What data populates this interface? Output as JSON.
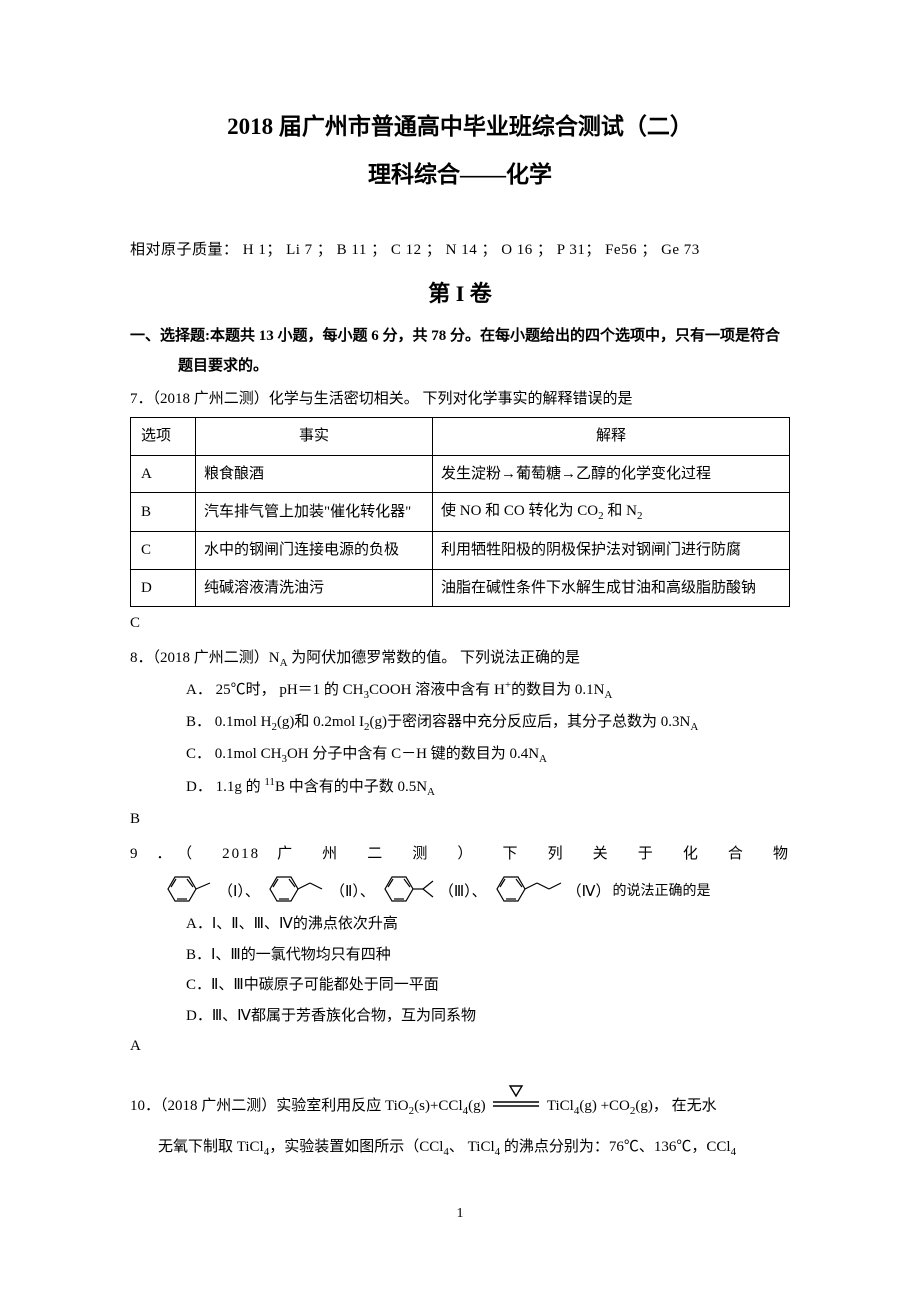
{
  "titles": {
    "line1": "2018 届广州市普通高中毕业班综合测试（二）",
    "line2": "理科综合——化学"
  },
  "atomic_masses_label": "相对原子质量：  H 1；  Li 7 ；  B 11 ；  C 12 ；  N 14 ；  O 16 ；  P 31；  Fe56 ；  Ge 73",
  "volume_heading": "第 I 卷",
  "section1": "一、选择题:本题共 13 小题，每小题 6 分，共 78 分。在每小题给出的四个选项中，只有一项是符合题目要求的。",
  "q7": {
    "stem": "7．（2018 广州二测）化学与生活密切相关。  下列对化学事实的解释错误的是",
    "headers": {
      "opt": "选项",
      "fact": "事实",
      "explain": "解释"
    },
    "rows": [
      {
        "opt": "A",
        "fact": "粮食酿酒",
        "explain": "发生淀粉→葡萄糖→乙醇的化学变化过程"
      },
      {
        "opt": "B",
        "fact": "汽车排气管上加装\"催化转化器\"",
        "explain_html": "使 NO 和 CO 转化为 CO<sub>2</sub> 和 N<sub>2</sub>"
      },
      {
        "opt": "C",
        "fact": "水中的钢闸门连接电源的负极",
        "explain": "利用牺牲阳极的阴极保护法对钢闸门进行防腐"
      },
      {
        "opt": "D",
        "fact": "纯碱溶液清洗油污",
        "explain": "油脂在碱性条件下水解生成甘油和高级脂肪酸钠"
      }
    ],
    "answer": "C"
  },
  "q8": {
    "stem_html": "8．（2018 广州二测）N<sub>A</sub> 为阿伏加德罗常数的值。  下列说法正确的是",
    "choices": [
      "A．  25℃时，  pH＝1 的 CH<sub>3</sub>COOH 溶液中含有 H<sup>+</sup>的数目为 0.1N<sub>A</sub>",
      "B．  0.1mol H<sub>2</sub>(g)和 0.2mol I<sub>2</sub>(g)于密闭容器中充分反应后，其分子总数为 0.3N<sub>A</sub>",
      "C．  0.1mol CH<sub>3</sub>OH 分子中含有 C－H 键的数目为 0.4N<sub>A</sub>",
      "D．  1.1g 的 <sup>11</sup>B 中含有的中子数 0.5N<sub>A</sub>"
    ],
    "answer": "B"
  },
  "q9": {
    "stem_prefix": "9 ．（ 2018 广 州 二 测 ） 下 列 关 于 化 合 物",
    "compound_labels": [
      "（Ⅰ）、",
      "（Ⅱ）、",
      "（Ⅲ）、",
      "（Ⅳ）"
    ],
    "trailing": "的说法正确的是",
    "choices": [
      "A．Ⅰ、Ⅱ、Ⅲ、Ⅳ的沸点依次升高",
      "B．Ⅰ、Ⅲ的一氯代物均只有四种",
      "C．Ⅱ、Ⅲ中碳原子可能都处于同一平面",
      "D．Ⅲ、Ⅳ都属于芳香族化合物，互为同系物"
    ],
    "answer": "A",
    "benzene_style": {
      "stroke": "#000000",
      "stroke_width": 1.2,
      "hex_radius": 14
    }
  },
  "q10": {
    "stem_part1_html": "10．（2018 广州二测）实验室利用反应 TiO<sub>2</sub>(s)+CCl<sub>4</sub>(g)",
    "stem_part2_html": "TiCl<sub>4</sub>(g) +CO<sub>2</sub>(g)，  在无水",
    "stem_line2_html": "无氧下制取 TiCl<sub>4</sub>，实验装置如图所示（CCl<sub>4</sub>、  TiCl<sub>4</sub> 的沸点分别为：76℃、136℃，CCl<sub>4</sub>",
    "triangle_color": "#000000"
  },
  "page_number": "1"
}
